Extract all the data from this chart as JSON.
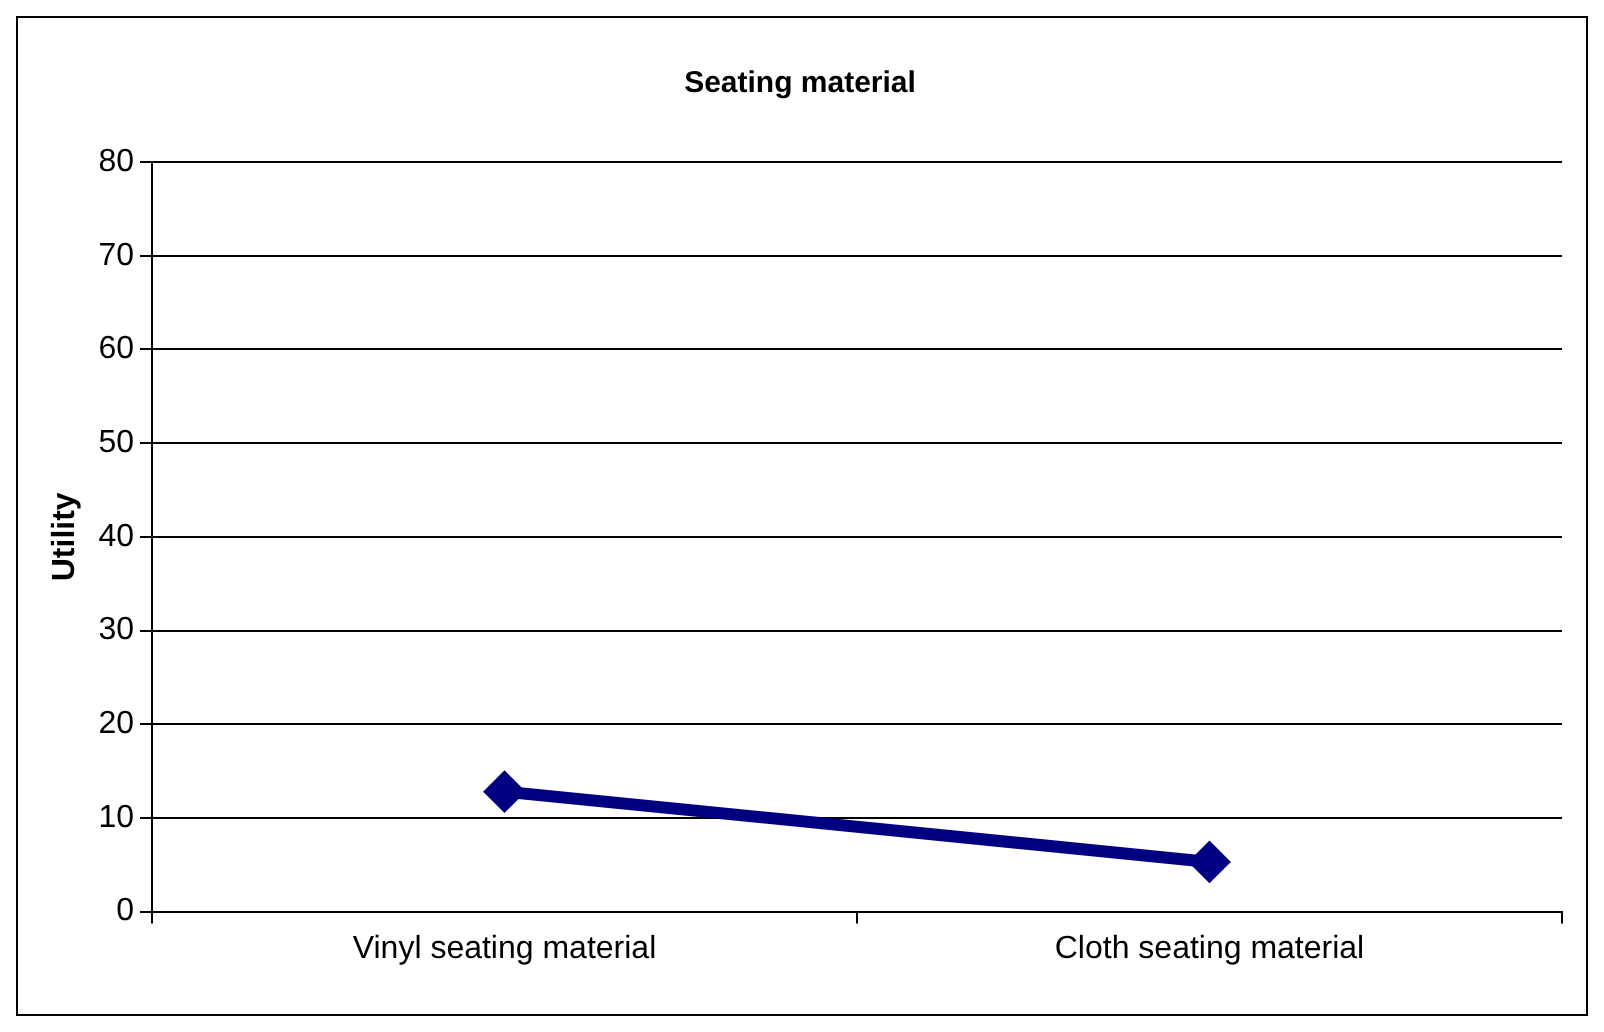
{
  "chart_data": {
    "type": "line",
    "title": "Seating material",
    "ylabel": "Utility",
    "categories": [
      "Vinyl seating material",
      "Cloth seating material"
    ],
    "series": [
      {
        "color": "#000080",
        "values": [
          12.8,
          5.3
        ]
      }
    ],
    "ylim": [
      0,
      80
    ],
    "yticks": [
      0,
      10,
      20,
      30,
      40,
      50,
      60,
      70,
      80
    ],
    "grid": "y",
    "legend": false,
    "marker": "diamond",
    "line_style": "solid"
  }
}
